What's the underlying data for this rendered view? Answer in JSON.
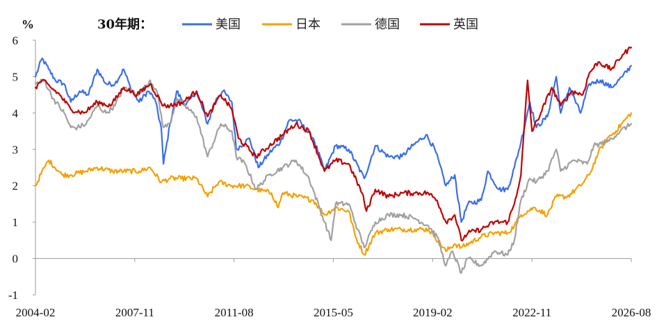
{
  "chart_data": {
    "type": "line",
    "unit": "%",
    "legend_title": "30年期：",
    "legend_position": "top",
    "grid": false,
    "ylim": [
      -1,
      6
    ],
    "yticks": [
      -1,
      0,
      1,
      2,
      3,
      4,
      5,
      6
    ],
    "xlim": [
      "2004-02",
      "2026-08"
    ],
    "xticks": [
      "2004-02",
      "2007-11",
      "2011-08",
      "2015-05",
      "2019-02",
      "2022-11",
      "2026-08"
    ],
    "colors": {
      "美国": "#3a6ee8",
      "日本": "#f5a000",
      "德国": "#a0a0a0",
      "英国": "#c00000"
    },
    "series": [
      {
        "name": "美国",
        "points": [
          [
            "2004-02",
            5.0
          ],
          [
            "2004-05",
            5.5
          ],
          [
            "2004-08",
            5.2
          ],
          [
            "2004-11",
            4.9
          ],
          [
            "2005-03",
            4.8
          ],
          [
            "2005-06",
            4.3
          ],
          [
            "2005-10",
            4.6
          ],
          [
            "2006-02",
            4.5
          ],
          [
            "2006-06",
            5.2
          ],
          [
            "2006-10",
            4.8
          ],
          [
            "2007-02",
            4.8
          ],
          [
            "2007-06",
            5.2
          ],
          [
            "2007-09",
            4.7
          ],
          [
            "2008-01",
            4.3
          ],
          [
            "2008-05",
            4.6
          ],
          [
            "2008-08",
            4.4
          ],
          [
            "2008-11",
            3.6
          ],
          [
            "2008-12",
            2.6
          ],
          [
            "2009-03",
            3.7
          ],
          [
            "2009-06",
            4.6
          ],
          [
            "2009-10",
            4.2
          ],
          [
            "2010-03",
            4.6
          ],
          [
            "2010-08",
            3.7
          ],
          [
            "2010-12",
            4.4
          ],
          [
            "2011-03",
            4.6
          ],
          [
            "2011-07",
            4.3
          ],
          [
            "2011-09",
            3.0
          ],
          [
            "2012-03",
            3.3
          ],
          [
            "2012-07",
            2.5
          ],
          [
            "2012-12",
            2.9
          ],
          [
            "2013-05",
            3.2
          ],
          [
            "2013-09",
            3.8
          ],
          [
            "2014-01",
            3.8
          ],
          [
            "2014-08",
            3.3
          ],
          [
            "2015-01",
            2.4
          ],
          [
            "2015-06",
            3.1
          ],
          [
            "2015-12",
            3.0
          ],
          [
            "2016-07",
            2.2
          ],
          [
            "2016-12",
            3.1
          ],
          [
            "2017-06",
            2.8
          ],
          [
            "2017-12",
            2.8
          ],
          [
            "2018-05",
            3.1
          ],
          [
            "2018-11",
            3.4
          ],
          [
            "2019-03",
            3.0
          ],
          [
            "2019-08",
            2.0
          ],
          [
            "2019-12",
            2.3
          ],
          [
            "2020-03",
            1.0
          ],
          [
            "2020-06",
            1.5
          ],
          [
            "2020-12",
            1.6
          ],
          [
            "2021-03",
            2.4
          ],
          [
            "2021-08",
            1.9
          ],
          [
            "2021-12",
            1.9
          ],
          [
            "2022-03",
            2.5
          ],
          [
            "2022-06",
            3.2
          ],
          [
            "2022-10",
            4.3
          ],
          [
            "2023-01",
            3.6
          ],
          [
            "2023-06",
            3.9
          ],
          [
            "2023-10",
            5.0
          ],
          [
            "2023-12",
            4.0
          ],
          [
            "2024-04",
            4.7
          ],
          [
            "2024-09",
            4.0
          ],
          [
            "2025-01",
            4.8
          ],
          [
            "2025-06",
            4.9
          ],
          [
            "2025-11",
            4.7
          ],
          [
            "2026-04",
            5.0
          ],
          [
            "2026-08",
            5.3
          ]
        ]
      },
      {
        "name": "日本",
        "points": [
          [
            "2004-02",
            2.0
          ],
          [
            "2004-06",
            2.5
          ],
          [
            "2004-08",
            2.7
          ],
          [
            "2005-02",
            2.3
          ],
          [
            "2005-06",
            2.3
          ],
          [
            "2006-01",
            2.4
          ],
          [
            "2006-06",
            2.5
          ],
          [
            "2007-01",
            2.4
          ],
          [
            "2007-06",
            2.4
          ],
          [
            "2008-01",
            2.4
          ],
          [
            "2008-06",
            2.5
          ],
          [
            "2008-11",
            2.1
          ],
          [
            "2009-03",
            2.2
          ],
          [
            "2009-08",
            2.2
          ],
          [
            "2010-03",
            2.2
          ],
          [
            "2010-08",
            1.7
          ],
          [
            "2011-01",
            2.1
          ],
          [
            "2011-07",
            2.0
          ],
          [
            "2012-01",
            2.0
          ],
          [
            "2012-06",
            1.9
          ],
          [
            "2013-01",
            1.8
          ],
          [
            "2013-04",
            1.4
          ],
          [
            "2013-06",
            1.8
          ],
          [
            "2014-01",
            1.7
          ],
          [
            "2014-08",
            1.6
          ],
          [
            "2015-01",
            1.2
          ],
          [
            "2015-06",
            1.4
          ],
          [
            "2015-12",
            1.3
          ],
          [
            "2016-03",
            0.6
          ],
          [
            "2016-07",
            0.1
          ],
          [
            "2016-12",
            0.7
          ],
          [
            "2017-06",
            0.8
          ],
          [
            "2017-12",
            0.8
          ],
          [
            "2018-06",
            0.8
          ],
          [
            "2018-12",
            0.8
          ],
          [
            "2019-03",
            0.6
          ],
          [
            "2019-08",
            0.2
          ],
          [
            "2019-12",
            0.4
          ],
          [
            "2020-03",
            0.3
          ],
          [
            "2020-12",
            0.6
          ],
          [
            "2021-06",
            0.7
          ],
          [
            "2021-12",
            0.7
          ],
          [
            "2022-03",
            0.9
          ],
          [
            "2022-06",
            1.2
          ],
          [
            "2022-12",
            1.4
          ],
          [
            "2023-06",
            1.2
          ],
          [
            "2023-10",
            1.7
          ],
          [
            "2024-03",
            1.7
          ],
          [
            "2024-09",
            2.0
          ],
          [
            "2025-01",
            2.3
          ],
          [
            "2025-05",
            2.9
          ],
          [
            "2025-09",
            3.3
          ],
          [
            "2026-01",
            3.5
          ],
          [
            "2026-05",
            3.8
          ],
          [
            "2026-08",
            4.0
          ]
        ]
      },
      {
        "name": "德国",
        "points": [
          [
            "2004-02",
            4.8
          ],
          [
            "2004-06",
            4.9
          ],
          [
            "2004-10",
            4.4
          ],
          [
            "2005-03",
            4.0
          ],
          [
            "2005-06",
            3.6
          ],
          [
            "2005-09",
            3.6
          ],
          [
            "2006-01",
            3.7
          ],
          [
            "2006-06",
            4.2
          ],
          [
            "2006-10",
            4.0
          ],
          [
            "2007-02",
            4.2
          ],
          [
            "2007-06",
            4.7
          ],
          [
            "2007-10",
            4.6
          ],
          [
            "2008-01",
            4.5
          ],
          [
            "2008-06",
            4.9
          ],
          [
            "2008-09",
            4.6
          ],
          [
            "2008-12",
            3.6
          ],
          [
            "2009-03",
            3.7
          ],
          [
            "2009-06",
            4.4
          ],
          [
            "2010-03",
            3.9
          ],
          [
            "2010-08",
            2.8
          ],
          [
            "2011-02",
            3.7
          ],
          [
            "2011-07",
            3.5
          ],
          [
            "2011-09",
            2.8
          ],
          [
            "2012-01",
            2.6
          ],
          [
            "2012-06",
            1.9
          ],
          [
            "2012-12",
            2.3
          ],
          [
            "2013-06",
            2.5
          ],
          [
            "2013-12",
            2.7
          ],
          [
            "2014-06",
            2.2
          ],
          [
            "2015-01",
            1.0
          ],
          [
            "2015-04",
            0.5
          ],
          [
            "2015-06",
            1.5
          ],
          [
            "2015-12",
            1.5
          ],
          [
            "2016-04",
            0.8
          ],
          [
            "2016-07",
            0.3
          ],
          [
            "2016-12",
            1.0
          ],
          [
            "2017-06",
            1.2
          ],
          [
            "2017-12",
            1.2
          ],
          [
            "2018-06",
            1.1
          ],
          [
            "2018-12",
            0.9
          ],
          [
            "2019-04",
            0.6
          ],
          [
            "2019-08",
            -0.2
          ],
          [
            "2019-11",
            0.2
          ],
          [
            "2020-03",
            -0.4
          ],
          [
            "2020-06",
            0.0
          ],
          [
            "2020-12",
            -0.2
          ],
          [
            "2021-06",
            0.2
          ],
          [
            "2021-12",
            0.1
          ],
          [
            "2022-03",
            0.5
          ],
          [
            "2022-06",
            1.6
          ],
          [
            "2022-10",
            2.2
          ],
          [
            "2023-01",
            2.1
          ],
          [
            "2023-06",
            2.4
          ],
          [
            "2023-10",
            3.0
          ],
          [
            "2023-12",
            2.4
          ],
          [
            "2024-06",
            2.7
          ],
          [
            "2024-12",
            2.6
          ],
          [
            "2025-03",
            3.1
          ],
          [
            "2025-09",
            3.2
          ],
          [
            "2026-03",
            3.5
          ],
          [
            "2026-08",
            3.7
          ]
        ]
      },
      {
        "name": "英国",
        "points": [
          [
            "2004-02",
            4.7
          ],
          [
            "2004-05",
            4.9
          ],
          [
            "2004-09",
            4.7
          ],
          [
            "2005-01",
            4.5
          ],
          [
            "2005-06",
            4.1
          ],
          [
            "2005-12",
            4.0
          ],
          [
            "2006-06",
            4.3
          ],
          [
            "2006-12",
            4.2
          ],
          [
            "2007-06",
            4.7
          ],
          [
            "2007-12",
            4.5
          ],
          [
            "2008-06",
            4.8
          ],
          [
            "2008-12",
            4.2
          ],
          [
            "2009-03",
            4.2
          ],
          [
            "2009-09",
            4.3
          ],
          [
            "2010-03",
            4.6
          ],
          [
            "2010-08",
            3.9
          ],
          [
            "2011-02",
            4.5
          ],
          [
            "2011-07",
            4.1
          ],
          [
            "2011-10",
            3.3
          ],
          [
            "2012-06",
            2.8
          ],
          [
            "2012-12",
            3.1
          ],
          [
            "2013-06",
            3.4
          ],
          [
            "2013-12",
            3.7
          ],
          [
            "2014-06",
            3.5
          ],
          [
            "2015-01",
            2.4
          ],
          [
            "2015-06",
            2.7
          ],
          [
            "2015-12",
            2.6
          ],
          [
            "2016-06",
            1.8
          ],
          [
            "2016-08",
            1.3
          ],
          [
            "2016-12",
            1.9
          ],
          [
            "2017-06",
            1.7
          ],
          [
            "2017-12",
            1.8
          ],
          [
            "2018-06",
            1.8
          ],
          [
            "2018-12",
            1.8
          ],
          [
            "2019-04",
            1.6
          ],
          [
            "2019-08",
            1.0
          ],
          [
            "2019-12",
            1.2
          ],
          [
            "2020-03",
            0.5
          ],
          [
            "2020-06",
            0.7
          ],
          [
            "2020-12",
            0.8
          ],
          [
            "2021-06",
            1.0
          ],
          [
            "2021-12",
            1.0
          ],
          [
            "2022-03",
            1.5
          ],
          [
            "2022-06",
            2.3
          ],
          [
            "2022-09",
            4.9
          ],
          [
            "2022-11",
            3.5
          ],
          [
            "2023-03",
            4.0
          ],
          [
            "2023-08",
            4.7
          ],
          [
            "2023-12",
            4.2
          ],
          [
            "2024-05",
            4.6
          ],
          [
            "2024-10",
            4.5
          ],
          [
            "2025-01",
            5.1
          ],
          [
            "2025-05",
            5.4
          ],
          [
            "2025-11",
            5.2
          ],
          [
            "2026-04",
            5.6
          ],
          [
            "2026-08",
            5.8
          ]
        ]
      }
    ]
  }
}
